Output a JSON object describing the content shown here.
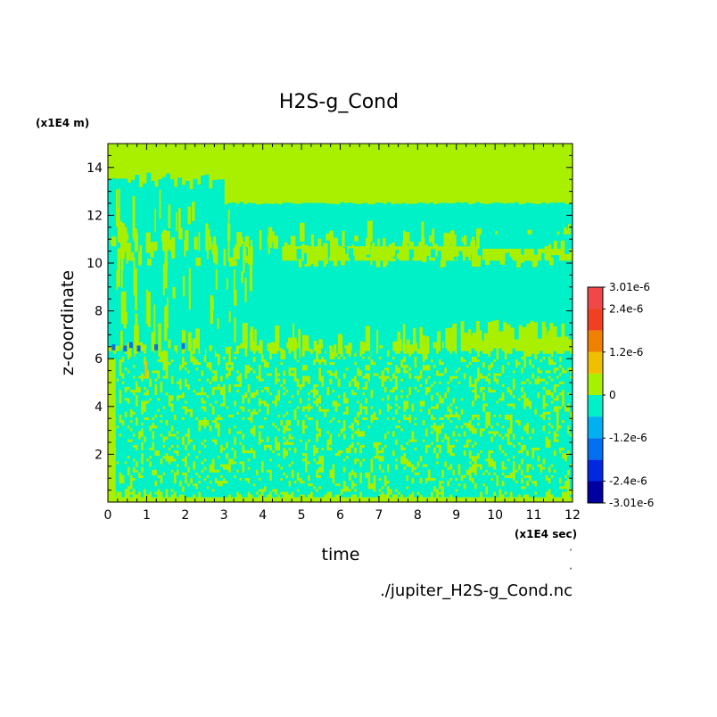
{
  "chart_data": {
    "type": "heatmap",
    "title": "H2S-g_Cond",
    "xlabel": "time",
    "ylabel": "z-coordinate",
    "x_unit": "(x1E4 sec)",
    "y_unit": "(x1E4 m)",
    "xlim": [
      0,
      12
    ],
    "ylim": [
      0,
      15
    ],
    "xticks": [
      {
        "value": 0,
        "label": "0"
      },
      {
        "value": 1,
        "label": "1"
      },
      {
        "value": 2,
        "label": "2"
      },
      {
        "value": 3,
        "label": "3"
      },
      {
        "value": 4,
        "label": "4"
      },
      {
        "value": 5,
        "label": "5"
      },
      {
        "value": 6,
        "label": "6"
      },
      {
        "value": 7,
        "label": "7"
      },
      {
        "value": 8,
        "label": "8"
      },
      {
        "value": 9,
        "label": "9"
      },
      {
        "value": 10,
        "label": "10"
      },
      {
        "value": 11,
        "label": "11"
      },
      {
        "value": 12,
        "label": "12"
      }
    ],
    "yticks": [
      {
        "value": 2,
        "label": "2"
      },
      {
        "value": 4,
        "label": "4"
      },
      {
        "value": 6,
        "label": "6"
      },
      {
        "value": 8,
        "label": "8"
      },
      {
        "value": 10,
        "label": "10"
      },
      {
        "value": 12,
        "label": "12"
      },
      {
        "value": 14,
        "label": "14"
      }
    ],
    "colorbar": {
      "min": -3.01e-06,
      "max": 3.01e-06,
      "levels": [
        {
          "from": -3.01e-06,
          "to": -2.4e-06,
          "color": "#0000a0"
        },
        {
          "from": -2.4e-06,
          "to": -1.8e-06,
          "color": "#0028e0"
        },
        {
          "from": -1.8e-06,
          "to": -1.2e-06,
          "color": "#0070f0"
        },
        {
          "from": -1.2e-06,
          "to": -6e-07,
          "color": "#00b0f0"
        },
        {
          "from": -6e-07,
          "to": 0,
          "color": "#00f0c8"
        },
        {
          "from": 0,
          "to": 6e-07,
          "color": "#a8f000"
        },
        {
          "from": 6e-07,
          "to": 1.2e-06,
          "color": "#f0c000"
        },
        {
          "from": 1.2e-06,
          "to": 1.8e-06,
          "color": "#f08000"
        },
        {
          "from": 1.8e-06,
          "to": 2.4e-06,
          "color": "#f04020"
        },
        {
          "from": 2.4e-06,
          "to": 3.01e-06,
          "color": "#f04848"
        }
      ],
      "tick_labels": [
        {
          "value": 3.01e-06,
          "label": "3.01e-6"
        },
        {
          "value": 2.4e-06,
          "label": "2.4e-6"
        },
        {
          "value": 1.2e-06,
          "label": "1.2e-6"
        },
        {
          "value": 0,
          "label": "0"
        },
        {
          "value": -1.2e-06,
          "label": "-1.2e-6"
        },
        {
          "value": -2.4e-06,
          "label": "-2.4e-6"
        },
        {
          "value": -3.01e-06,
          "label": "-3.01e-6"
        }
      ]
    },
    "regions": [
      {
        "z_range": [
          0,
          6.2
        ],
        "description_value": "alternating 0 to -0.6e-6 and 0 to 0.6e-6 (fine-scale mix)",
        "color_low": "#00f0c8",
        "color_high": "#a8f000"
      },
      {
        "z_range": [
          6.2,
          12.5
        ],
        "value_range": [
          -6e-07,
          0
        ],
        "color": "#00f0c8"
      },
      {
        "z_range": [
          12.5,
          15
        ],
        "value_range": [
          0,
          6e-07
        ],
        "color": "#a8f000"
      }
    ],
    "source_file": "./jupiter_H2S-g_Cond.nc"
  }
}
